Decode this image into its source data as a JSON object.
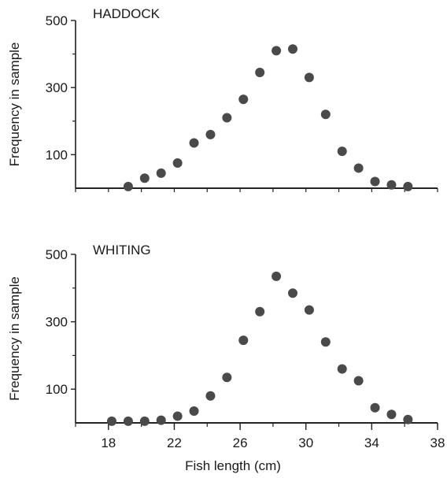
{
  "chart_data": [
    {
      "type": "scatter",
      "panel_label": "HADDOCK",
      "ylabel": "Frequency in sample",
      "xlim": [
        16,
        38
      ],
      "ylim": [
        0,
        500
      ],
      "y_ticks": [
        100,
        300,
        500
      ],
      "y_minor_ticks": [
        200,
        400
      ],
      "x": [
        19.2,
        20.2,
        21.2,
        22.2,
        23.2,
        24.2,
        25.2,
        26.2,
        27.2,
        28.2,
        29.2,
        30.2,
        31.2,
        32.2,
        33.2,
        34.2,
        35.2,
        36.2
      ],
      "y": [
        5,
        30,
        45,
        75,
        135,
        160,
        210,
        265,
        345,
        410,
        415,
        330,
        220,
        110,
        60,
        20,
        10,
        5
      ],
      "marker_color": "#4a4a4a"
    },
    {
      "type": "scatter",
      "panel_label": "WHITING",
      "xlabel": "Fish length (cm)",
      "ylabel": "Frequency in sample",
      "xlim": [
        16,
        38
      ],
      "ylim": [
        0,
        500
      ],
      "y_ticks": [
        100,
        300,
        500
      ],
      "y_minor_ticks": [
        200,
        400
      ],
      "x_ticks": [
        18,
        22,
        26,
        30,
        34,
        38
      ],
      "x": [
        18.2,
        19.2,
        20.2,
        21.2,
        22.2,
        23.2,
        24.2,
        25.2,
        26.2,
        27.2,
        28.2,
        29.2,
        30.2,
        31.2,
        32.2,
        33.2,
        34.2,
        35.2,
        36.2
      ],
      "y": [
        5,
        5,
        5,
        8,
        20,
        35,
        80,
        135,
        245,
        330,
        435,
        385,
        335,
        240,
        160,
        125,
        45,
        25,
        10
      ],
      "marker_color": "#4a4a4a"
    }
  ]
}
